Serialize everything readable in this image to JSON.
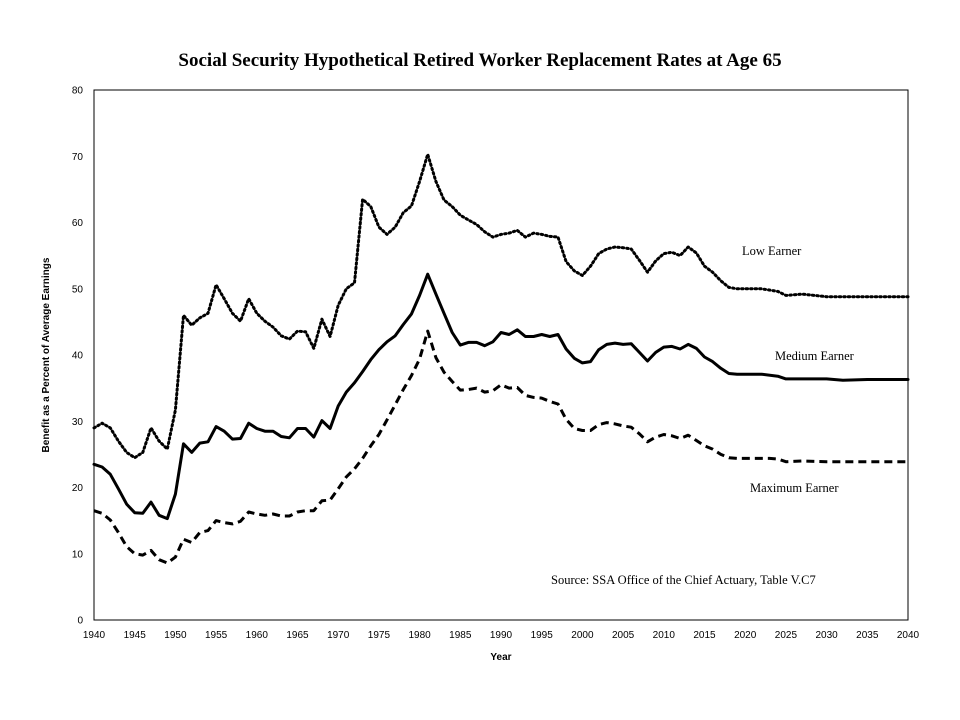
{
  "chart_data": {
    "type": "line",
    "title": "Social Security Hypothetical Retired Worker Replacement Rates at Age 65",
    "xlabel": "Year",
    "ylabel": "Benefit as a Percent of Average Earnings",
    "xlim": [
      1940,
      2040
    ],
    "ylim": [
      0,
      80
    ],
    "x_ticks": [
      "1940",
      "1945",
      "1950",
      "1955",
      "1960",
      "1965",
      "1970",
      "1975",
      "1980",
      "1985",
      "1990",
      "1995",
      "2000",
      "2005",
      "2010",
      "2015",
      "2020",
      "2025",
      "2030",
      "2035",
      "2040"
    ],
    "y_ticks": [
      "0",
      "10",
      "20",
      "30",
      "40",
      "50",
      "60",
      "70",
      "80"
    ],
    "grid": false,
    "source_note": "Source: SSA Office of the Chief Actuary, Table V.C7",
    "series": [
      {
        "name": "Low Earner",
        "line_style": "dotted",
        "color": "#000000",
        "points": [
          [
            1940,
            29.0
          ],
          [
            1941,
            29.7
          ],
          [
            1942,
            29.0
          ],
          [
            1943,
            27.0
          ],
          [
            1944,
            25.3
          ],
          [
            1945,
            24.5
          ],
          [
            1946,
            25.3
          ],
          [
            1947,
            29.0
          ],
          [
            1948,
            27.0
          ],
          [
            1949,
            25.8
          ],
          [
            1950,
            31.7
          ],
          [
            1951,
            46.0
          ],
          [
            1952,
            44.5
          ],
          [
            1953,
            45.6
          ],
          [
            1954,
            46.3
          ],
          [
            1955,
            50.6
          ],
          [
            1956,
            48.5
          ],
          [
            1957,
            46.3
          ],
          [
            1958,
            45.1
          ],
          [
            1959,
            48.5
          ],
          [
            1960,
            46.3
          ],
          [
            1961,
            45.1
          ],
          [
            1962,
            44.2
          ],
          [
            1963,
            42.9
          ],
          [
            1964,
            42.4
          ],
          [
            1965,
            43.6
          ],
          [
            1966,
            43.5
          ],
          [
            1967,
            41.0
          ],
          [
            1968,
            45.4
          ],
          [
            1969,
            42.8
          ],
          [
            1970,
            47.5
          ],
          [
            1971,
            50.0
          ],
          [
            1972,
            50.9
          ],
          [
            1973,
            63.5
          ],
          [
            1974,
            62.4
          ],
          [
            1975,
            59.3
          ],
          [
            1976,
            58.2
          ],
          [
            1977,
            59.3
          ],
          [
            1978,
            61.5
          ],
          [
            1979,
            62.5
          ],
          [
            1980,
            66.2
          ],
          [
            1981,
            70.3
          ],
          [
            1982,
            66.2
          ],
          [
            1983,
            63.4
          ],
          [
            1984,
            62.4
          ],
          [
            1985,
            61.1
          ],
          [
            1986,
            60.4
          ],
          [
            1987,
            59.7
          ],
          [
            1988,
            58.6
          ],
          [
            1989,
            57.8
          ],
          [
            1990,
            58.2
          ],
          [
            1991,
            58.4
          ],
          [
            1992,
            58.8
          ],
          [
            1993,
            57.8
          ],
          [
            1994,
            58.4
          ],
          [
            1995,
            58.2
          ],
          [
            1996,
            57.9
          ],
          [
            1997,
            57.8
          ],
          [
            1998,
            54.1
          ],
          [
            1999,
            52.7
          ],
          [
            2000,
            52.0
          ],
          [
            2001,
            53.4
          ],
          [
            2002,
            55.3
          ],
          [
            2003,
            56.0
          ],
          [
            2004,
            56.3
          ],
          [
            2005,
            56.2
          ],
          [
            2006,
            56.0
          ],
          [
            2007,
            54.3
          ],
          [
            2008,
            52.5
          ],
          [
            2009,
            54.2
          ],
          [
            2010,
            55.3
          ],
          [
            2011,
            55.5
          ],
          [
            2012,
            55.0
          ],
          [
            2013,
            56.3
          ],
          [
            2014,
            55.4
          ],
          [
            2015,
            53.4
          ],
          [
            2016,
            52.5
          ],
          [
            2017,
            51.2
          ],
          [
            2018,
            50.2
          ],
          [
            2019,
            50.0
          ],
          [
            2020,
            50.0
          ],
          [
            2022,
            50.0
          ],
          [
            2024,
            49.6
          ],
          [
            2025,
            49.0
          ],
          [
            2027,
            49.2
          ],
          [
            2030,
            48.8
          ],
          [
            2035,
            48.8
          ],
          [
            2038,
            48.8
          ],
          [
            2040,
            48.8
          ]
        ]
      },
      {
        "name": "Medium Earner",
        "line_style": "solid",
        "color": "#000000",
        "points": [
          [
            1940,
            23.5
          ],
          [
            1941,
            23.1
          ],
          [
            1942,
            22.0
          ],
          [
            1943,
            19.8
          ],
          [
            1944,
            17.5
          ],
          [
            1945,
            16.2
          ],
          [
            1946,
            16.1
          ],
          [
            1947,
            17.8
          ],
          [
            1948,
            15.8
          ],
          [
            1949,
            15.3
          ],
          [
            1950,
            19.0
          ],
          [
            1951,
            26.6
          ],
          [
            1952,
            25.3
          ],
          [
            1953,
            26.7
          ],
          [
            1954,
            26.9
          ],
          [
            1955,
            29.2
          ],
          [
            1956,
            28.5
          ],
          [
            1957,
            27.3
          ],
          [
            1958,
            27.4
          ],
          [
            1959,
            29.7
          ],
          [
            1960,
            28.9
          ],
          [
            1961,
            28.5
          ],
          [
            1962,
            28.5
          ],
          [
            1963,
            27.7
          ],
          [
            1964,
            27.5
          ],
          [
            1965,
            28.9
          ],
          [
            1966,
            28.9
          ],
          [
            1967,
            27.6
          ],
          [
            1968,
            30.1
          ],
          [
            1969,
            28.9
          ],
          [
            1970,
            32.3
          ],
          [
            1971,
            34.4
          ],
          [
            1972,
            35.8
          ],
          [
            1973,
            37.5
          ],
          [
            1974,
            39.3
          ],
          [
            1975,
            40.8
          ],
          [
            1976,
            42.0
          ],
          [
            1977,
            42.9
          ],
          [
            1978,
            44.6
          ],
          [
            1979,
            46.2
          ],
          [
            1980,
            49.0
          ],
          [
            1981,
            52.2
          ],
          [
            1982,
            49.2
          ],
          [
            1983,
            46.3
          ],
          [
            1984,
            43.4
          ],
          [
            1985,
            41.5
          ],
          [
            1986,
            41.9
          ],
          [
            1987,
            41.9
          ],
          [
            1988,
            41.4
          ],
          [
            1989,
            42.0
          ],
          [
            1990,
            43.4
          ],
          [
            1991,
            43.1
          ],
          [
            1992,
            43.8
          ],
          [
            1993,
            42.8
          ],
          [
            1994,
            42.8
          ],
          [
            1995,
            43.1
          ],
          [
            1996,
            42.8
          ],
          [
            1997,
            43.1
          ],
          [
            1998,
            40.9
          ],
          [
            1999,
            39.5
          ],
          [
            2000,
            38.8
          ],
          [
            2001,
            39.0
          ],
          [
            2002,
            40.8
          ],
          [
            2003,
            41.6
          ],
          [
            2004,
            41.8
          ],
          [
            2005,
            41.6
          ],
          [
            2006,
            41.7
          ],
          [
            2007,
            40.4
          ],
          [
            2008,
            39.1
          ],
          [
            2009,
            40.4
          ],
          [
            2010,
            41.2
          ],
          [
            2011,
            41.3
          ],
          [
            2012,
            40.9
          ],
          [
            2013,
            41.6
          ],
          [
            2014,
            41.0
          ],
          [
            2015,
            39.7
          ],
          [
            2016,
            39.0
          ],
          [
            2017,
            38.0
          ],
          [
            2018,
            37.2
          ],
          [
            2019,
            37.1
          ],
          [
            2020,
            37.1
          ],
          [
            2022,
            37.1
          ],
          [
            2024,
            36.8
          ],
          [
            2025,
            36.4
          ],
          [
            2030,
            36.4
          ],
          [
            2032,
            36.2
          ],
          [
            2035,
            36.3
          ],
          [
            2040,
            36.3
          ]
        ]
      },
      {
        "name": "Maximum Earner",
        "line_style": "dashed",
        "color": "#000000",
        "points": [
          [
            1940,
            16.5
          ],
          [
            1941,
            16.1
          ],
          [
            1942,
            15.1
          ],
          [
            1943,
            13.2
          ],
          [
            1944,
            11.1
          ],
          [
            1945,
            10.0
          ],
          [
            1946,
            9.8
          ],
          [
            1947,
            10.5
          ],
          [
            1948,
            9.1
          ],
          [
            1949,
            8.6
          ],
          [
            1950,
            9.5
          ],
          [
            1951,
            12.2
          ],
          [
            1952,
            11.7
          ],
          [
            1953,
            13.2
          ],
          [
            1954,
            13.5
          ],
          [
            1955,
            15.0
          ],
          [
            1956,
            14.7
          ],
          [
            1957,
            14.5
          ],
          [
            1958,
            14.9
          ],
          [
            1959,
            16.3
          ],
          [
            1960,
            16.0
          ],
          [
            1961,
            15.8
          ],
          [
            1962,
            16.0
          ],
          [
            1963,
            15.7
          ],
          [
            1964,
            15.7
          ],
          [
            1965,
            16.3
          ],
          [
            1966,
            16.5
          ],
          [
            1967,
            16.5
          ],
          [
            1968,
            18.0
          ],
          [
            1969,
            18.1
          ],
          [
            1970,
            19.8
          ],
          [
            1971,
            21.6
          ],
          [
            1972,
            22.8
          ],
          [
            1973,
            24.4
          ],
          [
            1974,
            26.3
          ],
          [
            1975,
            28.0
          ],
          [
            1976,
            30.2
          ],
          [
            1977,
            32.5
          ],
          [
            1978,
            34.8
          ],
          [
            1979,
            36.9
          ],
          [
            1980,
            39.4
          ],
          [
            1981,
            43.6
          ],
          [
            1982,
            39.6
          ],
          [
            1983,
            37.4
          ],
          [
            1984,
            36.0
          ],
          [
            1985,
            34.7
          ],
          [
            1986,
            34.8
          ],
          [
            1987,
            35.0
          ],
          [
            1988,
            34.4
          ],
          [
            1989,
            34.6
          ],
          [
            1990,
            35.5
          ],
          [
            1991,
            35.0
          ],
          [
            1992,
            35.1
          ],
          [
            1993,
            33.9
          ],
          [
            1994,
            33.6
          ],
          [
            1995,
            33.5
          ],
          [
            1996,
            33.0
          ],
          [
            1997,
            32.6
          ],
          [
            1998,
            30.3
          ],
          [
            1999,
            28.9
          ],
          [
            2000,
            28.6
          ],
          [
            2001,
            28.6
          ],
          [
            2002,
            29.5
          ],
          [
            2003,
            29.8
          ],
          [
            2004,
            29.6
          ],
          [
            2005,
            29.3
          ],
          [
            2006,
            29.1
          ],
          [
            2007,
            28.1
          ],
          [
            2008,
            26.9
          ],
          [
            2009,
            27.6
          ],
          [
            2010,
            28.0
          ],
          [
            2011,
            27.8
          ],
          [
            2012,
            27.4
          ],
          [
            2013,
            27.9
          ],
          [
            2014,
            27.1
          ],
          [
            2015,
            26.3
          ],
          [
            2016,
            25.8
          ],
          [
            2017,
            25.0
          ],
          [
            2018,
            24.5
          ],
          [
            2019,
            24.4
          ],
          [
            2020,
            24.4
          ],
          [
            2023,
            24.4
          ],
          [
            2024,
            24.3
          ],
          [
            2025,
            23.9
          ],
          [
            2027,
            24.0
          ],
          [
            2030,
            23.9
          ],
          [
            2035,
            23.9
          ],
          [
            2040,
            23.9
          ]
        ]
      }
    ]
  }
}
